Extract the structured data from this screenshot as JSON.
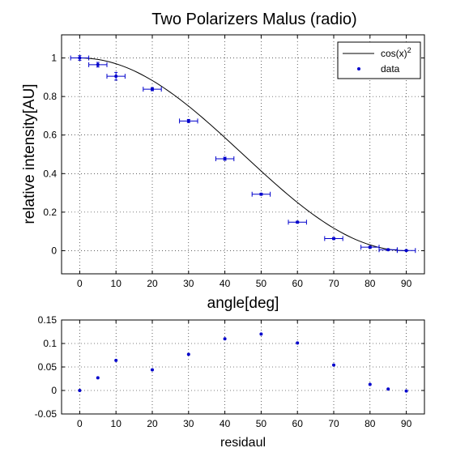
{
  "chart_data": [
    {
      "type": "scatter",
      "title": "Two Polarizers Malus (radio)",
      "xlabel": "angle[deg]",
      "ylabel": "relative intensity[AU]",
      "xlim": [
        -5,
        95
      ],
      "ylim": [
        -0.12,
        1.12
      ],
      "xticks": [
        0,
        10,
        20,
        30,
        40,
        50,
        60,
        70,
        80,
        90
      ],
      "yticks": [
        0,
        0.2,
        0.4,
        0.6,
        0.8,
        1
      ],
      "grid": true,
      "legend_position": "top-right",
      "legend": {
        "line_label_base": "cos(x)",
        "line_label_exp": "2",
        "marker_label": "data"
      },
      "colors": {
        "data": "#0000cc",
        "model": "#000000"
      },
      "model": "cos^2(x)",
      "series": [
        {
          "name": "data",
          "x": [
            0,
            5,
            10,
            20,
            30,
            40,
            50,
            60,
            70,
            80,
            85,
            90
          ],
          "y": [
            1.0,
            0.965,
            0.905,
            0.838,
            0.673,
            0.477,
            0.293,
            0.148,
            0.063,
            0.018,
            0.005,
            0.001
          ],
          "x_err": [
            2.5,
            2.5,
            2.5,
            2.5,
            2.5,
            2.5,
            2.5,
            2.5,
            2.5,
            2.5,
            2.5,
            2.5
          ],
          "y_err": [
            0.012,
            0.012,
            0.02,
            0.008,
            0.008,
            0.008,
            0.005,
            0.005,
            0.005,
            0.005,
            0.004,
            0.003
          ]
        }
      ]
    },
    {
      "type": "scatter",
      "title": "",
      "xlabel": "residaul",
      "ylabel": "",
      "xlim": [
        -5,
        95
      ],
      "ylim": [
        -0.05,
        0.15
      ],
      "xticks": [
        0,
        10,
        20,
        30,
        40,
        50,
        60,
        70,
        80,
        90
      ],
      "yticks": [
        -0.05,
        0,
        0.05,
        0.1,
        0.15
      ],
      "grid": true,
      "colors": {
        "data": "#0000cc"
      },
      "series": [
        {
          "name": "",
          "x": [
            0,
            5,
            10,
            20,
            30,
            40,
            50,
            60,
            70,
            80,
            85,
            90
          ],
          "y": [
            0.0,
            0.027,
            0.064,
            0.044,
            0.077,
            0.11,
            0.12,
            0.101,
            0.054,
            0.013,
            0.003,
            -0.001
          ]
        }
      ]
    }
  ]
}
